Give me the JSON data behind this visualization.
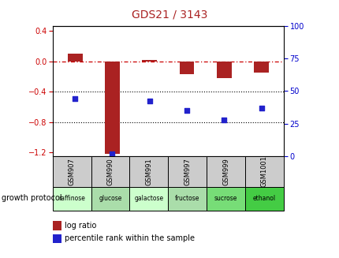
{
  "title": "GDS21 / 3143",
  "samples": [
    "GSM907",
    "GSM990",
    "GSM991",
    "GSM997",
    "GSM999",
    "GSM1001"
  ],
  "protocols": [
    "raffinose",
    "glucose",
    "galactose",
    "fructose",
    "sucrose",
    "ethanol"
  ],
  "protocol_colors": [
    "#ccffcc",
    "#aaddaa",
    "#ccffcc",
    "#aaddaa",
    "#77dd77",
    "#44cc44"
  ],
  "log_ratio": [
    0.1,
    -1.22,
    0.02,
    -0.17,
    -0.22,
    -0.15
  ],
  "percentile_rank": [
    44,
    2,
    42,
    35,
    28,
    37
  ],
  "bar_color": "#aa2222",
  "dot_color": "#2222cc",
  "ylim_left": [
    -1.25,
    0.47
  ],
  "ylim_right": [
    0,
    100
  ],
  "yticks_left": [
    0.4,
    0.0,
    -0.4,
    -0.8,
    -1.2
  ],
  "yticks_right": [
    0,
    25,
    50,
    75,
    100
  ],
  "hline_y": 0.0,
  "dotted_lines": [
    -0.4,
    -0.8
  ],
  "bg_color": "#ffffff",
  "plot_bg": "#ffffff",
  "legend_log_ratio": "log ratio",
  "legend_percentile": "percentile rank within the sample",
  "growth_protocol_label": "growth protocol",
  "header_bg": "#cccccc",
  "title_color": "#aa2222",
  "left_tick_color": "#cc0000",
  "right_tick_color": "#0000cc"
}
